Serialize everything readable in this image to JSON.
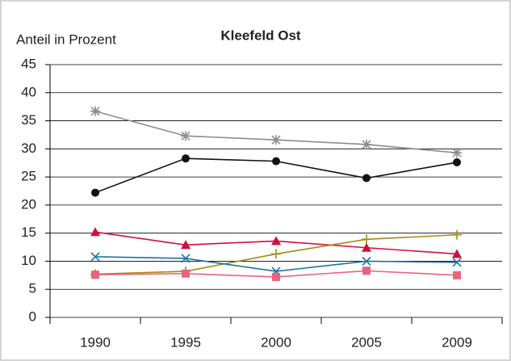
{
  "chart_data": {
    "type": "line",
    "title": "Kleefeld Ost",
    "y_label": "Anteil in Prozent",
    "categories": [
      "1990",
      "1995",
      "2000",
      "2005",
      "2009"
    ],
    "series": [
      {
        "color": "#8c8c8c",
        "marker": "asterisk",
        "values": [
          36.7,
          32.3,
          31.6,
          30.8,
          29.3
        ]
      },
      {
        "color": "#111111",
        "marker": "circle",
        "values": [
          22.2,
          28.3,
          27.8,
          24.8,
          27.6
        ]
      },
      {
        "color": "#d0103a",
        "marker": "triangle",
        "values": [
          15.2,
          12.9,
          13.6,
          12.4,
          11.3
        ]
      },
      {
        "color": "#a88a10",
        "marker": "plus",
        "values": [
          7.7,
          8.2,
          11.3,
          13.9,
          14.7
        ]
      },
      {
        "color": "#1a74a8",
        "marker": "x",
        "values": [
          10.8,
          10.5,
          8.2,
          10.0,
          9.8
        ]
      },
      {
        "color": "#e8647e",
        "marker": "square",
        "values": [
          7.6,
          7.8,
          7.2,
          8.3,
          7.5
        ]
      }
    ],
    "ylim": [
      0,
      45
    ],
    "yticks": [
      0,
      5,
      10,
      15,
      20,
      25,
      30,
      35,
      40,
      45
    ],
    "grid": true
  }
}
